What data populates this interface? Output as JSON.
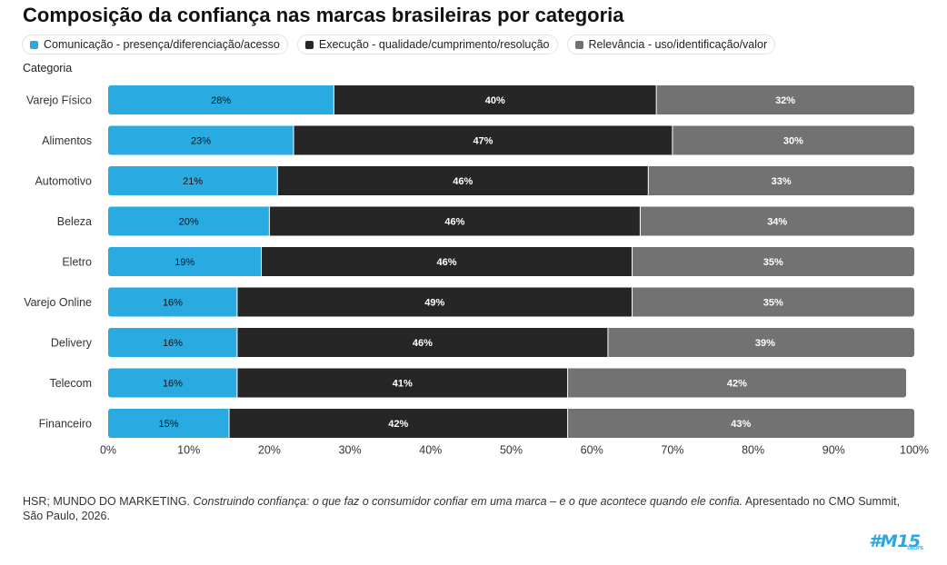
{
  "chart_data": {
    "type": "bar",
    "orientation": "horizontal",
    "stacked": true,
    "title": "Composição da confiança nas marcas brasileiras por categoria",
    "ylabel": "Categoria",
    "xlabel": "",
    "xlim": [
      0,
      100
    ],
    "xticks": [
      "0%",
      "10%",
      "20%",
      "30%",
      "40%",
      "50%",
      "60%",
      "70%",
      "80%",
      "90%",
      "100%"
    ],
    "categories": [
      "Varejo Físico",
      "Alimentos",
      "Automotivo",
      "Beleza",
      "Eletro",
      "Varejo Online",
      "Delivery",
      "Telecom",
      "Financeiro"
    ],
    "series": [
      {
        "name": "Comunicação - presença/diferenciação/acesso",
        "color": "#29abe2",
        "label_color": "#111111",
        "values": [
          28,
          23,
          21,
          20,
          19,
          16,
          16,
          16,
          15
        ]
      },
      {
        "name": "Execução - qualidade/cumprimento/resolução",
        "color": "#262626",
        "label_color": "#ffffff",
        "values": [
          40,
          47,
          46,
          46,
          46,
          49,
          46,
          41,
          42
        ]
      },
      {
        "name": "Relevância - uso/identificação/valor",
        "color": "#727272",
        "label_color": "#ffffff",
        "values": [
          32,
          30,
          33,
          34,
          35,
          35,
          39,
          42,
          43
        ]
      }
    ],
    "legend_position": "top-left",
    "grid": false
  },
  "source": {
    "prefix": "HSR; MUNDO DO MARKETING. ",
    "italic": "Construindo confiança: o que faz o consumidor confiar em uma marca – e o que acontece quando ele confia.",
    "suffix": " Apresentado no CMO Summit, São Paulo, 2026."
  },
  "logo": {
    "main": "#M15",
    "sub": "DROPS"
  }
}
